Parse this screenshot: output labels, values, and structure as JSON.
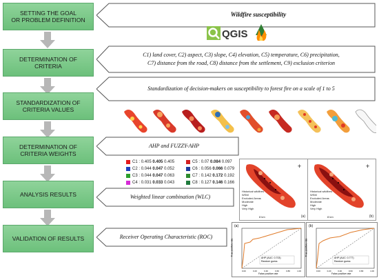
{
  "steps": [
    {
      "label": "SETTING THE GOAL\nOR PROBLEM DEFINITION"
    },
    {
      "label": "DETERMINATION OF\nCRITERIA"
    },
    {
      "label": "STANDARDIZATION OF\nCRITERIA VALUES"
    },
    {
      "label": "DETERMINATION OF\nCRITERIA WEIGHTS"
    },
    {
      "label": "ANALYSIS RESULTS"
    },
    {
      "label": "VALIDATION OF RESULTS"
    }
  ],
  "callouts": {
    "goal": "Wildfire susceptibility",
    "criteria_line1": "C1) land cover, C2) aspect, C3) slope, C4) elevation, C5) temperature, C6) precipitation,",
    "criteria_line2": "C7) distance from the road, C8) distance from the settlement, C9) exclusion criterion",
    "standardization": "Standardization of decision-makers on susceptibility to forest fire on a scale of 1 to 5",
    "weights": "AHP and FUZZY-AHP",
    "analysis": "Weighted linear combination (WLC)",
    "validation": "Receiver Operating Characteristic (ROC)"
  },
  "qgis": {
    "logo_text": "QGIS",
    "icon": "qgis-logo-icon"
  },
  "weights_legend": [
    {
      "id": "C1",
      "color": "#e41a1c",
      "v1": "0.405",
      "v2": "0.405",
      "v3": "0.405"
    },
    {
      "id": "C2",
      "color": "#1f3fbf",
      "v1": "0.044",
      "v2": "0.047",
      "v3": "0.052"
    },
    {
      "id": "C3",
      "color": "#2ca02c",
      "v1": "0.044",
      "v2": "0.047",
      "v3": "0.063"
    },
    {
      "id": "C4",
      "color": "#d62ad6",
      "v1": "0.031",
      "v2": "0.033",
      "v3": "0.043"
    },
    {
      "id": "C5",
      "color": "#d42020",
      "v1": "0.07",
      "v2": "0.084",
      "v3": "0.097"
    },
    {
      "id": "C6",
      "color": "#1e3a9e",
      "v1": "0.056",
      "v2": "0.066",
      "v3": "0.079"
    },
    {
      "id": "C7",
      "color": "#2e8b2e",
      "v1": "0.142",
      "v2": "0.172",
      "v3": "0.192"
    },
    {
      "id": "C8",
      "color": "#1e7a3c",
      "v1": "0.127",
      "v2": "0.146",
      "v3": "0.166"
    }
  ],
  "maps": {
    "legend_items": [
      "Historical wildfires",
      "Excluded Areas",
      "Moderate",
      "High",
      "Very High"
    ],
    "legend_title": "WSM",
    "scale": "8 km",
    "panels": [
      "(a)",
      "(b)"
    ],
    "colors": {
      "moderate": "#f5a57a",
      "high": "#e2432a",
      "very_high": "#8a1010"
    }
  },
  "roc": {
    "panels": [
      "(a)",
      "(b)"
    ],
    "xlabel": "False positive rate",
    "ylabel": "True positive rate",
    "ticks": [
      "0.00",
      "0.10",
      "0.20",
      "0.30",
      "0.40",
      "0.50",
      "0.60",
      "0.70",
      "0.80",
      "0.90",
      "1.00"
    ],
    "legend_a": [
      "AHP (AUC: 0.703)",
      "Random guess"
    ],
    "legend_b": [
      "AHP (AUC: 0.777)",
      "Random guess"
    ],
    "curve_color": "#e07a28"
  }
}
